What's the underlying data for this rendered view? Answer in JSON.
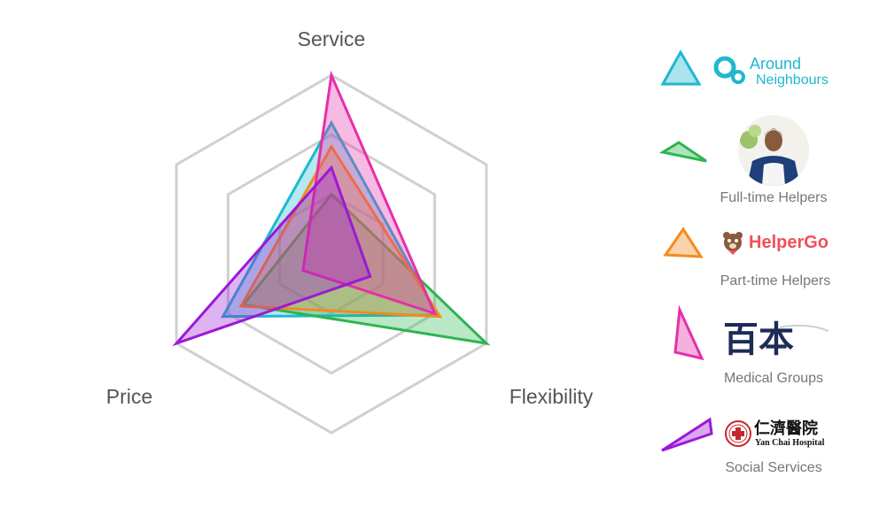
{
  "chart_data": {
    "type": "radar",
    "axes": [
      "Service",
      "Flexibility",
      "Price"
    ],
    "max": 3,
    "grid_levels": 3,
    "grid": true,
    "legend_position": "right",
    "series": [
      {
        "key": "around-neighbours",
        "color": "#1fb8cf",
        "values": [
          2.2,
          2.05,
          2.1
        ]
      },
      {
        "key": "full-time-helpers",
        "color": "#2db54f",
        "values": [
          1.0,
          3.0,
          1.7
        ]
      },
      {
        "key": "part-time-helpers",
        "color": "#f58a1f",
        "values": [
          1.8,
          2.1,
          1.75
        ]
      },
      {
        "key": "medical-groups",
        "color": "#e62fa9",
        "values": [
          3.0,
          2.0,
          0.55
        ]
      },
      {
        "key": "social-services",
        "color": "#9b19d6",
        "values": [
          1.45,
          0.75,
          3.0
        ]
      }
    ]
  },
  "legend": [
    {
      "marker_color": "#1fb8cf",
      "caption": "",
      "brand": "Around Neighbours",
      "brand_lines": [
        "Around",
        "Neighbours"
      ],
      "brand_color": "#1fb8cf",
      "icon": "around-neighbours-logo"
    },
    {
      "marker_color": "#2db54f",
      "caption": "Full-time Helpers",
      "brand": "",
      "icon": "helper-portrait-photo"
    },
    {
      "marker_color": "#f58a1f",
      "caption": "Part-time Helpers",
      "brand": "HelperGo",
      "brand_color": "#f0505a",
      "icon": "helpergo-bear-logo"
    },
    {
      "marker_color": "#e62fa9",
      "caption": "Medical Groups",
      "brand": "百本",
      "brand_color": "#1d2b57",
      "icon": "baiben-calligraphy-logo"
    },
    {
      "marker_color": "#9b19d6",
      "caption": "Social Services",
      "brand": "仁濟醫院",
      "brand_sub": "Yan Chai Hospital",
      "brand_color": "#111111",
      "icon": "yan-chai-hospital-logo"
    }
  ]
}
